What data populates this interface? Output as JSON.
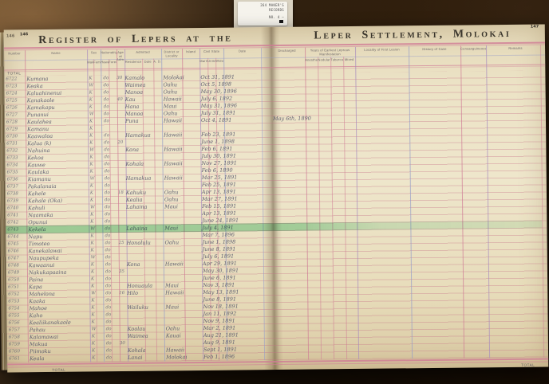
{
  "photo": {
    "flag": {
      "line1": "264 MAKER'S",
      "line2": "RECORDS",
      "line3": "NO. 4 —"
    },
    "left_page": {
      "page_number": "146",
      "under_page_number": "146",
      "title": "Register of Lepers at the",
      "total_top": "Total",
      "total_bottom": "Total"
    },
    "right_page": {
      "page_number": "147",
      "title": "Leper Settlement, Molokai",
      "total_bottom": "Total",
      "discharged_note": "May 6th, 1890",
      "discharged_note_row": 6
    },
    "columns_left": {
      "number": "Number",
      "name": "Name",
      "sex": "Sex",
      "sex_subs": [
        "Male",
        "Female"
      ],
      "nationality": "Nationality",
      "nationality_subs": [
        "Hawaiian",
        "Foreigner"
      ],
      "age": "Age at Adm.",
      "admitted": "Admitted",
      "admitted_subs": [
        "Residence",
        "Date",
        "A. D."
      ],
      "district": "District or Locality",
      "island": "Island",
      "civil": "Civil State",
      "civil_subs": [
        "Married",
        "Unmarried",
        "Widowed"
      ],
      "date": "Date"
    },
    "columns_right": {
      "discharged": "Discharged",
      "years": "Years of Earliest Leprous Manifestation",
      "years_subs": [
        "Anesthetic",
        "Nodular",
        "Tubercular",
        "Mixed"
      ],
      "locality": "Locality of First Lesion",
      "history": "History of Case",
      "consanguineous": "Consanguineous",
      "remarks": "Remarks"
    },
    "highlight_row": 21,
    "rows": [
      {
        "num": "6722",
        "name": "Kumana",
        "sx": "K",
        "do": "do",
        "age": "30",
        "res": "Kamalo",
        "isl": "Molokai",
        "date": "Oct 31, 1891"
      },
      {
        "num": "6723",
        "name": "Keaka",
        "sx": "W",
        "do": "do",
        "age": "",
        "res": "Waimea",
        "isl": "Oahu",
        "date": "Oct 5, 1898"
      },
      {
        "num": "6724",
        "name": "Kaluahinenui",
        "sx": "K",
        "do": "do",
        "age": "",
        "res": "Manoa",
        "isl": "Oahu",
        "date": "May 30, 1896"
      },
      {
        "num": "6725",
        "name": "Kanakaole",
        "sx": "K",
        "do": "do",
        "age": "40",
        "res": "Kau",
        "isl": "Hawaii",
        "date": "July 6, 1892"
      },
      {
        "num": "6726",
        "name": "Kamakapu",
        "sx": "K",
        "do": "do",
        "age": "",
        "res": "Hana",
        "isl": "Maui",
        "date": "May 31, 1896"
      },
      {
        "num": "6727",
        "name": "Punanui",
        "sx": "W",
        "do": "do",
        "age": "",
        "res": "Manoa",
        "isl": "Oahu",
        "date": "July 31, 1891"
      },
      {
        "num": "6728",
        "name": "Kaulahea",
        "sx": "K",
        "do": "do",
        "age": "",
        "res": "Puna",
        "isl": "Hawaii",
        "date": "Oct 4, 1891"
      },
      {
        "num": "6729",
        "name": "Kamanu",
        "sx": "K",
        "do": "",
        "age": "",
        "res": "",
        "isl": "",
        "date": ""
      },
      {
        "num": "6730",
        "name": "Kaawaloa",
        "sx": "K",
        "do": "do",
        "age": "",
        "res": "Hamakua",
        "isl": "Hawaii",
        "date": "Feb 23, 1891"
      },
      {
        "num": "6731",
        "name": "Kalua (k)",
        "sx": "K",
        "do": "do",
        "age": "20",
        "res": "",
        "isl": "",
        "date": "June 1, 1898"
      },
      {
        "num": "6732",
        "name": "Nahuina",
        "sx": "W",
        "do": "do",
        "age": "",
        "res": "Kona",
        "isl": "Hawaii",
        "date": "Feb 6, 1891"
      },
      {
        "num": "6733",
        "name": "Kekoa",
        "sx": "K",
        "do": "do",
        "age": "",
        "res": "",
        "isl": "",
        "date": "July 30, 1891"
      },
      {
        "num": "6734",
        "name": "Kauwe",
        "sx": "K",
        "do": "do",
        "age": "",
        "res": "Kohala",
        "isl": "Hawaii",
        "date": "Nov 27, 1891"
      },
      {
        "num": "6735",
        "name": "Kaulaka",
        "sx": "K",
        "do": "do",
        "age": "",
        "res": "",
        "isl": "",
        "date": "Feb 6, 1890"
      },
      {
        "num": "6736",
        "name": "Kiamanu",
        "sx": "W",
        "do": "do",
        "age": "",
        "res": "Hamakua",
        "isl": "Hawaii",
        "date": "Mar 25, 1891"
      },
      {
        "num": "6737",
        "name": "Pakalanaia",
        "sx": "K",
        "do": "do",
        "age": "",
        "res": "",
        "isl": "",
        "date": "Feb 25, 1891"
      },
      {
        "num": "6738",
        "name": "Kahele",
        "sx": "K",
        "do": "do",
        "age": "18",
        "res": "Kahuku",
        "isl": "Oahu",
        "date": "Apr 13, 1891"
      },
      {
        "num": "6739",
        "name": "Kahale (Oka)",
        "sx": "K",
        "do": "do",
        "age": "",
        "res": "Kealia",
        "isl": "Oahu",
        "date": "Mar 27, 1891"
      },
      {
        "num": "6740",
        "name": "Kahuli",
        "sx": "W",
        "do": "do",
        "age": "",
        "res": "Lahaina",
        "isl": "Maui",
        "date": "Feb 15, 1891"
      },
      {
        "num": "6741",
        "name": "Naamaka",
        "sx": "K",
        "do": "do",
        "age": "",
        "res": "",
        "isl": "",
        "date": "Apr 13, 1891"
      },
      {
        "num": "6742",
        "name": "Opunui",
        "sx": "K",
        "do": "do",
        "age": "",
        "res": "",
        "isl": "",
        "date": "June 24, 1891"
      },
      {
        "num": "6743",
        "name": "Kekela",
        "sx": "W",
        "do": "do",
        "age": "",
        "res": "Lahaina",
        "isl": "Maui",
        "date": "July 4, 1891"
      },
      {
        "num": "6744",
        "name": "Napu",
        "sx": "K",
        "do": "do",
        "age": "",
        "res": "",
        "isl": "",
        "date": "Mar 7, 1896"
      },
      {
        "num": "6745",
        "name": "Timoteo",
        "sx": "K",
        "do": "do",
        "age": "25",
        "res": "Honolulu",
        "isl": "Oahu",
        "date": "June 1, 1898"
      },
      {
        "num": "6746",
        "name": "Kanekalawai",
        "sx": "K",
        "do": "do",
        "age": "",
        "res": "",
        "isl": "",
        "date": "June 8, 1891"
      },
      {
        "num": "6747",
        "name": "Naupupeka",
        "sx": "W",
        "do": "do",
        "age": "",
        "res": "",
        "isl": "",
        "date": "July 6, 1891"
      },
      {
        "num": "6748",
        "name": "Kawaanui",
        "sx": "K",
        "do": "do",
        "age": "",
        "res": "Kona",
        "isl": "Hawaii",
        "date": "Apr 29, 1891"
      },
      {
        "num": "6749",
        "name": "Nakukapaaina",
        "sx": "K",
        "do": "do",
        "age": "35",
        "res": "",
        "isl": "",
        "date": "May 30, 1891"
      },
      {
        "num": "6750",
        "name": "Paina",
        "sx": "K",
        "do": "do",
        "age": "",
        "res": "",
        "isl": "",
        "date": "June 6, 1891"
      },
      {
        "num": "6751",
        "name": "Kapa",
        "sx": "K",
        "do": "do",
        "age": "",
        "res": "Honuaula",
        "isl": "Maui",
        "date": "Nov 3, 1891"
      },
      {
        "num": "6752",
        "name": "Mahelona",
        "sx": "W",
        "do": "do",
        "age": "16",
        "res": "Hilo",
        "isl": "Hawaii",
        "date": "May 13, 1891"
      },
      {
        "num": "6753",
        "name": "Kaaka",
        "sx": "K",
        "do": "do",
        "age": "",
        "res": "",
        "isl": "",
        "date": "June 8, 1891"
      },
      {
        "num": "6754",
        "name": "Mahoe",
        "sx": "K",
        "do": "do",
        "age": "",
        "res": "Wailuku",
        "isl": "Maui",
        "date": "Nov 18, 1891"
      },
      {
        "num": "6755",
        "name": "Kaho",
        "sx": "K",
        "do": "do",
        "age": "",
        "res": "",
        "isl": "",
        "date": "Jan 11, 1892"
      },
      {
        "num": "6756",
        "name": "Kealiikanakaole",
        "sx": "K",
        "do": "do",
        "age": "",
        "res": "",
        "isl": "",
        "date": "Nov 9, 1891"
      },
      {
        "num": "6757",
        "name": "Pahau",
        "sx": "W",
        "do": "do",
        "age": "",
        "res": "Koolau",
        "isl": "Oahu",
        "date": "Mar 2, 1891"
      },
      {
        "num": "6758",
        "name": "Kalamawai",
        "sx": "K",
        "do": "do",
        "age": "",
        "res": "Waimea",
        "isl": "Kauai",
        "date": "Aug 21, 1891"
      },
      {
        "num": "6759",
        "name": "Makua",
        "sx": "K",
        "do": "do",
        "age": "30",
        "res": "",
        "isl": "",
        "date": "Aug 9, 1891"
      },
      {
        "num": "6760",
        "name": "Piimoku",
        "sx": "K",
        "do": "do",
        "age": "",
        "res": "Kohala",
        "isl": "Hawaii",
        "date": "Sept 1, 1891"
      },
      {
        "num": "6761",
        "name": "Keala",
        "sx": "K",
        "do": "do",
        "age": "",
        "res": "Lanai",
        "isl": "Molokai",
        "date": "Feb 1, 1896"
      }
    ],
    "colors": {
      "pink_rule": "#cf7b95",
      "blue_rule": "#969cc8",
      "purple_rule": "#a78abd",
      "ink": "#4f4f68",
      "highlight_green": "#60cd8c",
      "page": "#ece3c6",
      "wood": "#271808"
    }
  }
}
